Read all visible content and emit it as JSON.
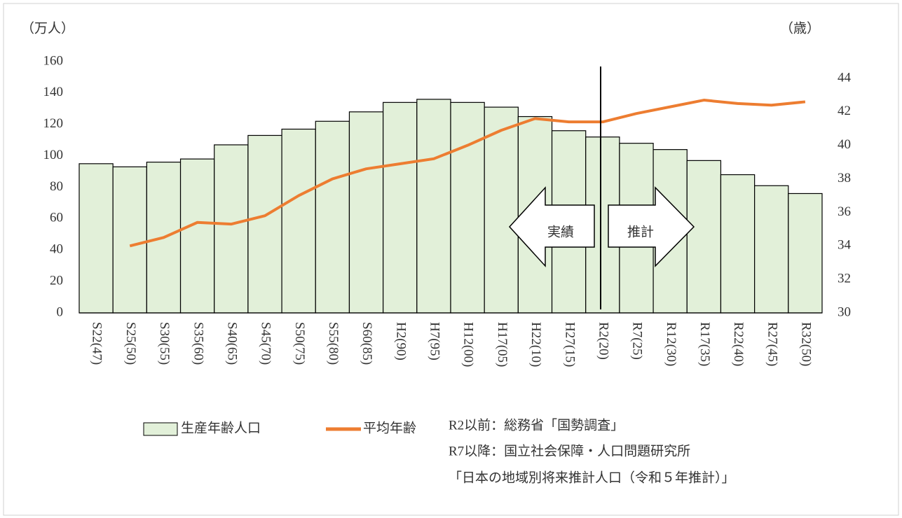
{
  "chart_data": {
    "type": "bar-line",
    "left_axis_label": "（万人）",
    "right_axis_label": "（歳）",
    "categories": [
      "S22(47)",
      "S25(50)",
      "S30(55)",
      "S35(60)",
      "S40(65)",
      "S45(70)",
      "S50(75)",
      "S55(80)",
      "S60(85)",
      "H2(90)",
      "H7(95)",
      "H12(00)",
      "H17(05)",
      "H22(10)",
      "H27(15)",
      "R2(20)",
      "R7(25)",
      "R12(30)",
      "R17(35)",
      "R22(40)",
      "R27(45)",
      "R32(50)"
    ],
    "series": [
      {
        "name": "生産年齢人口",
        "type": "bar",
        "color": "#e2f0d9",
        "values": [
          95,
          93,
          96,
          98,
          107,
          113,
          117,
          122,
          128,
          134,
          136,
          134,
          131,
          125,
          116,
          112,
          108,
          104,
          97,
          88,
          81,
          76
        ]
      },
      {
        "name": "平均年齢",
        "type": "line",
        "axis": "y2",
        "color": "#ed7d31",
        "values": [
          null,
          34.0,
          34.5,
          35.4,
          35.3,
          35.8,
          37.0,
          38.0,
          38.6,
          38.9,
          39.2,
          40.0,
          40.9,
          41.6,
          41.4,
          41.4,
          41.9,
          42.3,
          42.7,
          42.5,
          42.4,
          42.6
        ]
      }
    ],
    "ylim": [
      0,
      160
    ],
    "yticks": [
      0,
      20,
      40,
      60,
      80,
      100,
      120,
      140,
      160
    ],
    "y2lim": [
      30,
      45
    ],
    "y2ticks": [
      30,
      32,
      34,
      36,
      38,
      40,
      42,
      44
    ],
    "annotations": [
      "実績",
      "推計"
    ],
    "source": [
      "R2以前：総務省「国勢調査」",
      "R7以降：国立社会保障・人口問題研究所",
      "「日本の地域別将来推計人口（令和５年推計）」"
    ]
  }
}
